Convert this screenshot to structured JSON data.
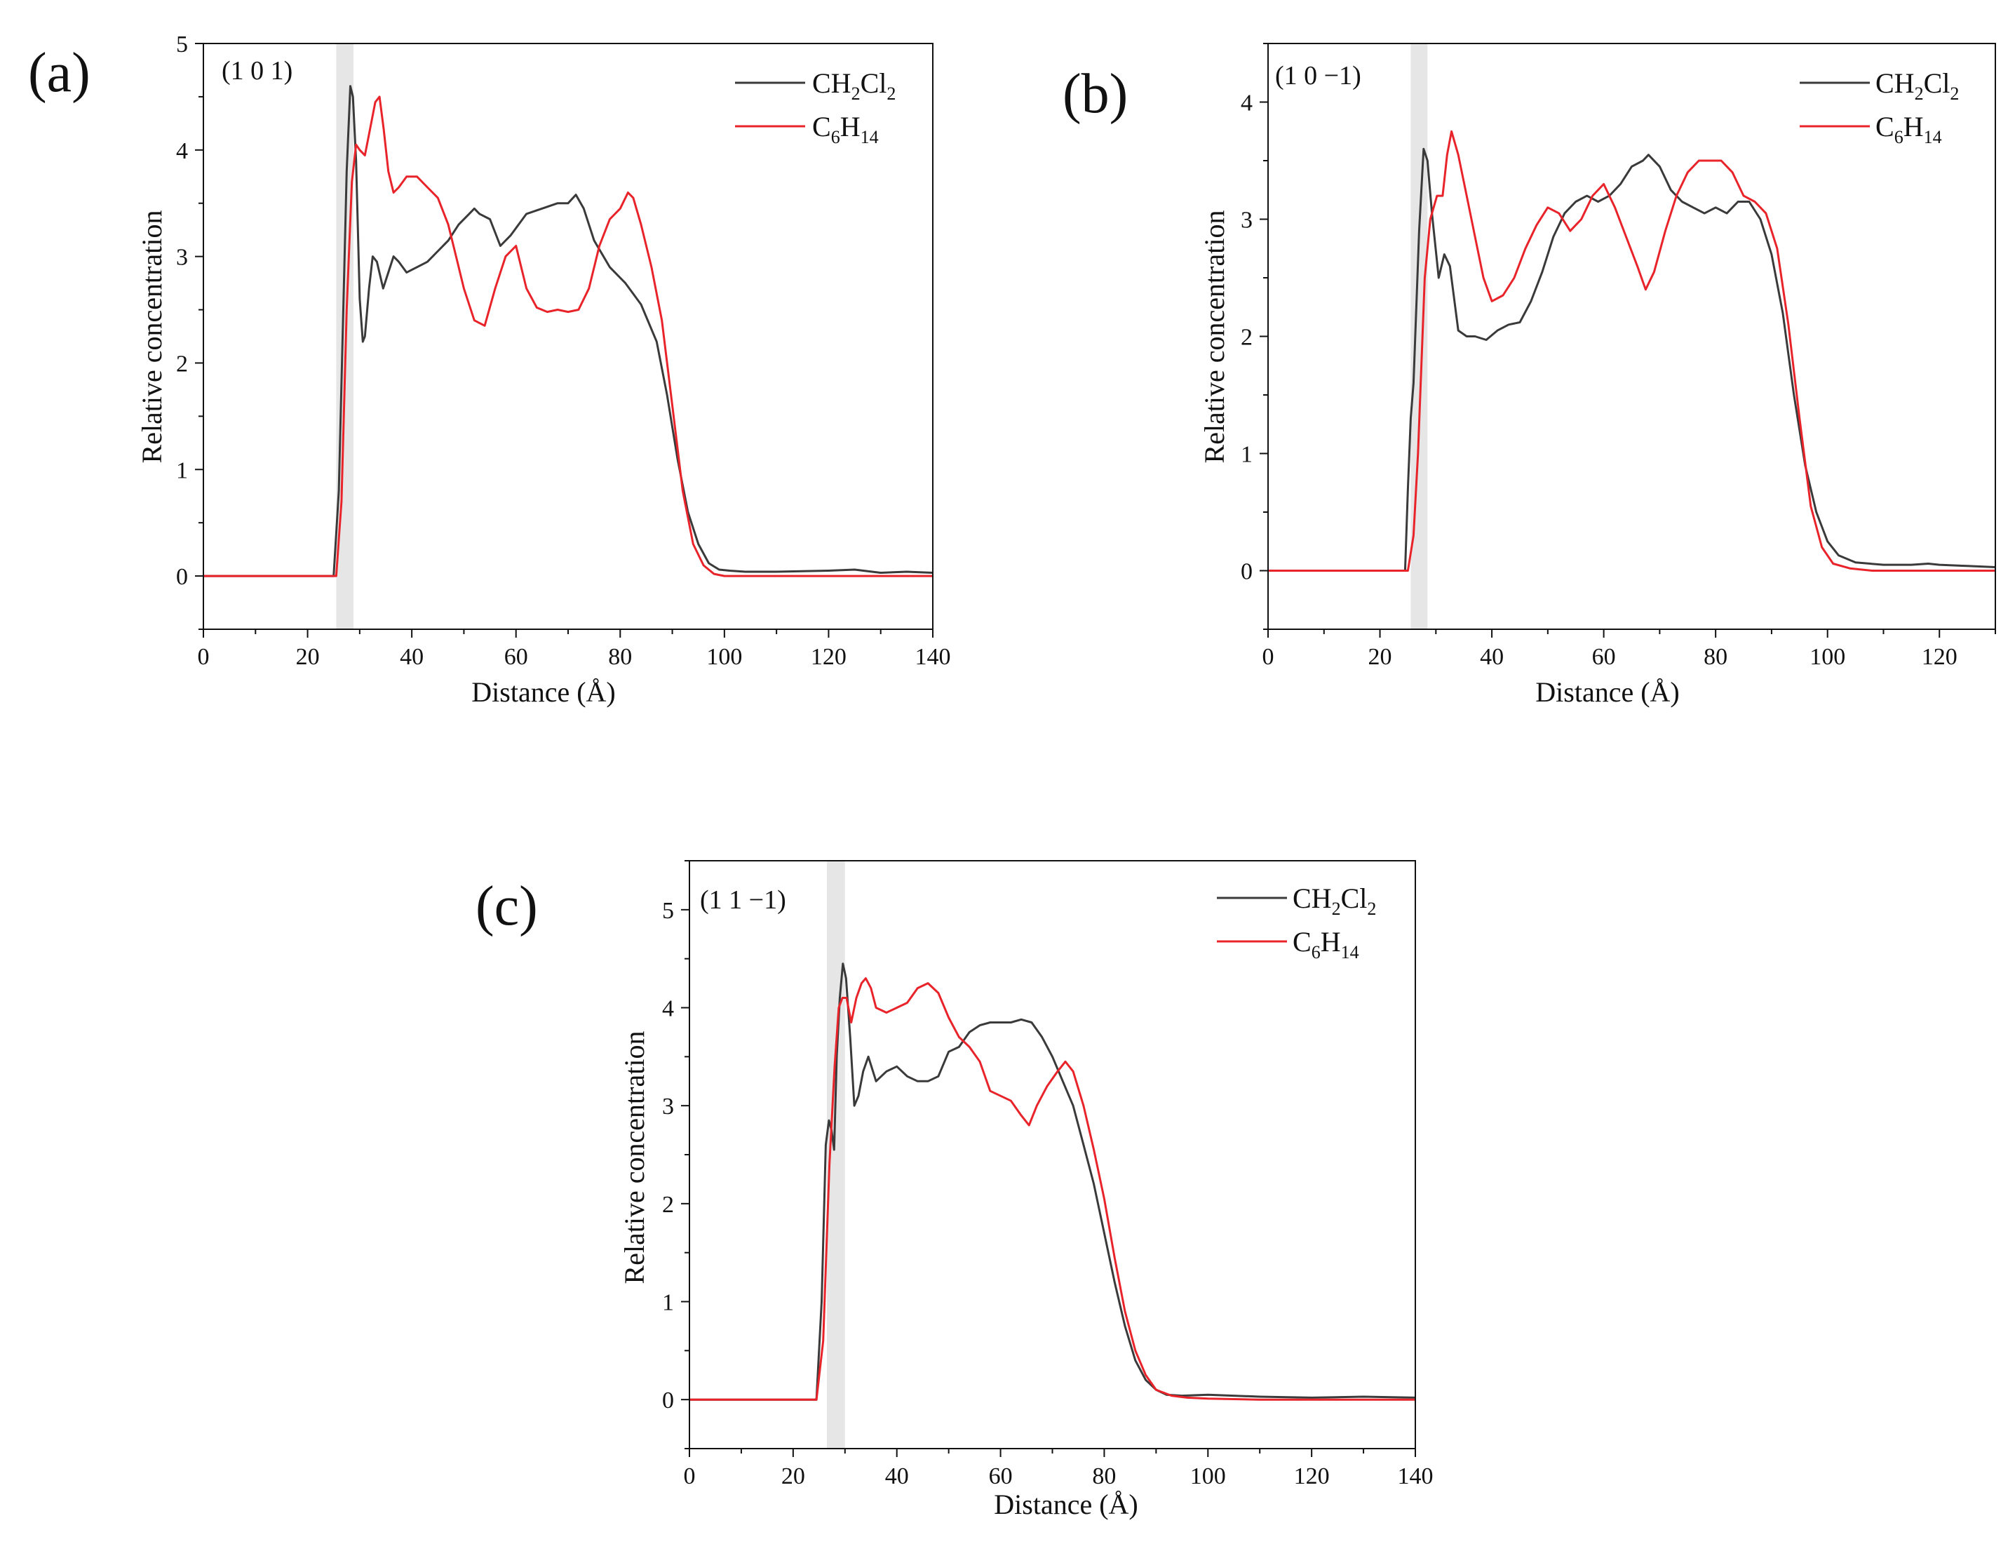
{
  "colors": {
    "ch2cl2": "#3a3a3a",
    "c6h14": "#e8242a",
    "band": "#e6e6e6",
    "axis": "#111111"
  },
  "chart_data": [
    {
      "type": "line",
      "panel_label": "(a)",
      "plane_label": "(1 0 1)",
      "xlabel": "Distance (Å)",
      "ylabel": "Relative concentration",
      "xlim": [
        0,
        140
      ],
      "ylim": [
        -0.5,
        5
      ],
      "xticks": [
        0,
        20,
        40,
        60,
        80,
        100,
        120,
        140
      ],
      "yticks": [
        0,
        1,
        2,
        3,
        4,
        5
      ],
      "band": [
        25.5,
        28.8
      ],
      "legend": {
        "placement": "top-right",
        "items": [
          {
            "base": "CH",
            "sub1": "2",
            "mid": "Cl",
            "sub2": "2"
          },
          {
            "base": "C",
            "sub1": "6",
            "mid": "H",
            "sub2": "14"
          }
        ]
      },
      "series": [
        {
          "name": "CH2Cl2",
          "x": [
            0,
            25,
            26,
            27,
            27.5,
            28.2,
            28.7,
            29.3,
            30,
            30.6,
            31,
            31.8,
            32.5,
            33.3,
            34.5,
            35.5,
            36.5,
            37.5,
            39,
            41,
            43,
            45,
            47,
            49,
            51,
            52,
            53,
            55,
            57,
            59,
            62,
            65,
            68,
            70,
            71.5,
            73,
            75,
            78,
            81,
            84,
            87,
            89,
            91,
            93,
            95,
            97,
            99,
            101,
            104,
            110,
            120,
            125,
            130,
            135,
            140
          ],
          "y": [
            0,
            0,
            0.8,
            2.8,
            3.8,
            4.6,
            4.5,
            3.9,
            2.6,
            2.2,
            2.25,
            2.7,
            3.0,
            2.95,
            2.7,
            2.85,
            3.0,
            2.95,
            2.85,
            2.9,
            2.95,
            3.05,
            3.15,
            3.3,
            3.4,
            3.45,
            3.4,
            3.35,
            3.1,
            3.2,
            3.4,
            3.45,
            3.5,
            3.5,
            3.58,
            3.45,
            3.15,
            2.9,
            2.75,
            2.55,
            2.2,
            1.7,
            1.1,
            0.6,
            0.3,
            0.12,
            0.06,
            0.05,
            0.04,
            0.04,
            0.05,
            0.06,
            0.03,
            0.04,
            0.03
          ]
        },
        {
          "name": "C6H14",
          "x": [
            0,
            25.5,
            26.5,
            27.5,
            28.5,
            29.3,
            30,
            31,
            32,
            33,
            33.8,
            34.6,
            35.5,
            36.5,
            37.5,
            39,
            41,
            43,
            45,
            47,
            48.5,
            50,
            52,
            54,
            56,
            58,
            60,
            62,
            64,
            66,
            68,
            70,
            72,
            74,
            76,
            78,
            80,
            81.5,
            82.5,
            84,
            86,
            88,
            90,
            92,
            94,
            96,
            98,
            100,
            105,
            120,
            140
          ],
          "y": [
            0,
            0,
            0.7,
            2.5,
            3.7,
            4.05,
            4.0,
            3.95,
            4.2,
            4.45,
            4.5,
            4.2,
            3.8,
            3.6,
            3.65,
            3.75,
            3.75,
            3.65,
            3.55,
            3.3,
            3.0,
            2.7,
            2.4,
            2.35,
            2.7,
            3.0,
            3.1,
            2.7,
            2.52,
            2.48,
            2.5,
            2.48,
            2.5,
            2.7,
            3.1,
            3.35,
            3.45,
            3.6,
            3.55,
            3.3,
            2.9,
            2.4,
            1.6,
            0.8,
            0.3,
            0.1,
            0.02,
            0.0,
            0.0,
            0.0,
            0.0
          ]
        }
      ]
    },
    {
      "type": "line",
      "panel_label": "(b)",
      "plane_label": "(1 0 −1)",
      "xlabel": "Distance (Å)",
      "ylabel": "Relative concentration",
      "xlim": [
        0,
        130
      ],
      "ylim": [
        -0.5,
        4.5
      ],
      "xticks": [
        0,
        20,
        40,
        60,
        80,
        100,
        120
      ],
      "yticks": [
        0,
        1,
        2,
        3,
        4
      ],
      "band": [
        25.5,
        28.5
      ],
      "legend": {
        "placement": "top-right",
        "items": [
          {
            "base": "CH",
            "sub1": "2",
            "mid": "Cl",
            "sub2": "2"
          },
          {
            "base": "C",
            "sub1": "6",
            "mid": "H",
            "sub2": "14"
          }
        ]
      },
      "series": [
        {
          "name": "CH2Cl2",
          "x": [
            0,
            24.5,
            25,
            25.5,
            26,
            27,
            27.8,
            28.5,
            29.3,
            30.5,
            31.5,
            32.5,
            34,
            35.5,
            37,
            39,
            41,
            43,
            45,
            47,
            49,
            51,
            53,
            55,
            57,
            59,
            61,
            63,
            65,
            67,
            68,
            70,
            72,
            74,
            76,
            78,
            80,
            82,
            84,
            86,
            88,
            90,
            92,
            94,
            96,
            98,
            100,
            102,
            105,
            110,
            115,
            118,
            120,
            125,
            130
          ],
          "y": [
            0,
            0,
            0.7,
            1.3,
            1.6,
            2.9,
            3.6,
            3.5,
            3.05,
            2.5,
            2.7,
            2.6,
            2.05,
            2.0,
            2.0,
            1.97,
            2.05,
            2.1,
            2.12,
            2.3,
            2.55,
            2.85,
            3.05,
            3.15,
            3.2,
            3.15,
            3.2,
            3.3,
            3.45,
            3.5,
            3.55,
            3.45,
            3.25,
            3.15,
            3.1,
            3.05,
            3.1,
            3.05,
            3.15,
            3.15,
            3.0,
            2.7,
            2.2,
            1.5,
            0.9,
            0.5,
            0.25,
            0.13,
            0.07,
            0.05,
            0.05,
            0.06,
            0.05,
            0.04,
            0.03
          ]
        },
        {
          "name": "C6H14",
          "x": [
            0,
            25,
            26,
            26.8,
            28,
            29,
            30.2,
            31.2,
            32,
            32.8,
            34,
            35.5,
            37,
            38.5,
            40,
            42,
            44,
            46,
            48,
            50,
            52,
            54,
            56,
            58,
            60,
            62,
            64,
            66,
            67.5,
            69,
            71,
            73,
            75,
            77,
            79,
            81,
            83,
            85,
            87,
            89,
            91,
            93,
            95,
            97,
            99,
            101,
            104,
            108,
            115,
            130
          ],
          "y": [
            0,
            0,
            0.3,
            1.0,
            2.5,
            3.0,
            3.2,
            3.2,
            3.55,
            3.75,
            3.55,
            3.2,
            2.85,
            2.5,
            2.3,
            2.35,
            2.5,
            2.75,
            2.95,
            3.1,
            3.05,
            2.9,
            3.0,
            3.2,
            3.3,
            3.1,
            2.85,
            2.6,
            2.4,
            2.55,
            2.9,
            3.2,
            3.4,
            3.5,
            3.5,
            3.5,
            3.4,
            3.2,
            3.15,
            3.05,
            2.75,
            2.1,
            1.3,
            0.55,
            0.2,
            0.06,
            0.02,
            0.0,
            0.0,
            0.0
          ]
        }
      ]
    },
    {
      "type": "line",
      "panel_label": "(c)",
      "plane_label": "(1 1 −1)",
      "xlabel": "Distance (Å)",
      "ylabel": "Relative concentration",
      "xlim": [
        0,
        140
      ],
      "ylim": [
        -0.5,
        5.5
      ],
      "xticks": [
        0,
        20,
        40,
        60,
        80,
        100,
        120,
        140
      ],
      "yticks": [
        0,
        1,
        2,
        3,
        4,
        5
      ],
      "band": [
        26.5,
        30.0
      ],
      "legend": {
        "placement": "top-right",
        "items": [
          {
            "base": "CH",
            "sub1": "2",
            "mid": "Cl",
            "sub2": "2"
          },
          {
            "base": "C",
            "sub1": "6",
            "mid": "H",
            "sub2": "14"
          }
        ]
      },
      "series": [
        {
          "name": "CH2Cl2",
          "x": [
            0,
            24.5,
            25.5,
            26.3,
            26.9,
            27.4,
            27.9,
            28.4,
            29,
            29.6,
            30.2,
            31,
            31.8,
            32.6,
            33.5,
            34.5,
            36,
            38,
            40,
            42,
            44,
            46,
            48,
            50,
            52,
            54,
            56,
            58,
            60,
            62,
            64,
            66,
            68,
            70,
            72,
            74,
            76,
            78,
            80,
            82,
            84,
            86,
            88,
            90,
            92,
            95,
            100,
            110,
            120,
            130,
            140
          ],
          "y": [
            0,
            0,
            1.0,
            2.6,
            2.85,
            2.75,
            2.55,
            3.5,
            4.1,
            4.45,
            4.3,
            3.7,
            3.0,
            3.1,
            3.35,
            3.5,
            3.25,
            3.35,
            3.4,
            3.3,
            3.25,
            3.25,
            3.3,
            3.55,
            3.6,
            3.75,
            3.82,
            3.85,
            3.85,
            3.85,
            3.88,
            3.85,
            3.7,
            3.5,
            3.25,
            3.0,
            2.6,
            2.2,
            1.7,
            1.2,
            0.75,
            0.4,
            0.2,
            0.1,
            0.05,
            0.04,
            0.05,
            0.03,
            0.02,
            0.03,
            0.02
          ]
        },
        {
          "name": "C6H14",
          "x": [
            0,
            24.5,
            25.8,
            27,
            28,
            28.8,
            29.5,
            30.3,
            31.2,
            32.2,
            33.2,
            34,
            35,
            36,
            38,
            40,
            42,
            44,
            46,
            48,
            50,
            52,
            54,
            56,
            58,
            60,
            62,
            64,
            65.5,
            67,
            69,
            71,
            72.5,
            74,
            76,
            78,
            80,
            82,
            84,
            86,
            88,
            90,
            93,
            96,
            100,
            110,
            120,
            130,
            140
          ],
          "y": [
            0,
            0,
            0.6,
            2.4,
            3.4,
            4.0,
            4.1,
            4.1,
            3.85,
            4.1,
            4.25,
            4.3,
            4.2,
            4.0,
            3.95,
            4.0,
            4.05,
            4.2,
            4.25,
            4.15,
            3.9,
            3.7,
            3.6,
            3.45,
            3.15,
            3.1,
            3.05,
            2.9,
            2.8,
            3.0,
            3.2,
            3.35,
            3.45,
            3.35,
            3.0,
            2.55,
            2.05,
            1.45,
            0.9,
            0.5,
            0.25,
            0.1,
            0.04,
            0.02,
            0.01,
            0.0,
            0.0,
            0.0,
            0.0
          ]
        }
      ]
    }
  ]
}
